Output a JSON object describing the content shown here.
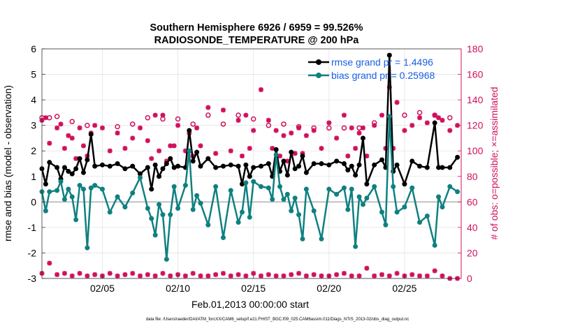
{
  "chart_data": {
    "type": "line",
    "title": "Southern Hemisphere 6926 / 6959 = 99.526%",
    "subtitle": "RADIOSONDE_TEMPERATURE @ 200 hPa",
    "xlabel": "Feb.01,2013 00:00:00 start",
    "ylabel": "rmse and bias (model - observation)",
    "y2label": "# of obs: o=possible; ×=assimilated",
    "footer": "data file: /Users/raeder/DAI/ATM_forcXX/CAM6_setup/f.e21.FHIST_BGC.f09_025.CAM6assim.011/Diags_NTrS_2013-02/obs_diag_output.nc",
    "xlim": [
      1.0,
      28.75
    ],
    "ylim": [
      -3,
      6
    ],
    "y2lim": [
      0,
      180
    ],
    "x_ticks": [
      5,
      10,
      15,
      20,
      25
    ],
    "x_tick_labels": [
      "02/05",
      "02/10",
      "02/15",
      "02/20",
      "02/25"
    ],
    "y_ticks": [
      -3,
      -2,
      -1,
      0,
      1,
      2,
      3,
      4,
      5,
      6
    ],
    "y2_ticks": [
      0,
      20,
      40,
      60,
      80,
      100,
      120,
      140,
      160,
      180
    ],
    "grid": true,
    "legend_position": "top-right",
    "colors": {
      "rmse": "#000000",
      "bias": "#0f8080",
      "obs": "#d0105c",
      "zero": "#b0b0b0"
    },
    "series": [
      {
        "name": "rmse grand pr = 1.4496",
        "x": [
          1.0,
          1.25,
          1.5,
          2.0,
          2.25,
          2.5,
          2.75,
          3.0,
          3.25,
          3.5,
          3.75,
          4.0,
          4.25,
          4.5,
          5.0,
          5.5,
          6.0,
          6.5,
          7.0,
          7.5,
          8.0,
          8.25,
          8.5,
          8.75,
          9.0,
          9.25,
          9.5,
          9.75,
          10.0,
          10.5,
          10.75,
          11.0,
          11.25,
          11.5,
          12.0,
          12.5,
          13.0,
          13.5,
          14.0,
          14.25,
          14.5,
          14.75,
          15.0,
          15.5,
          16.0,
          16.25,
          16.5,
          16.75,
          17.0,
          17.25,
          17.5,
          17.75,
          18.0,
          18.25,
          18.5,
          19.0,
          19.5,
          20.0,
          20.5,
          21.0,
          21.25,
          21.5,
          21.75,
          22.0,
          22.25,
          22.5,
          23.0,
          23.5,
          23.75,
          24.0,
          24.25,
          24.5,
          25.0,
          25.5,
          26.0,
          26.5,
          27.0,
          27.25,
          27.5,
          28.0,
          28.5
        ],
        "values": [
          1.3,
          0.7,
          1.55,
          1.35,
          0.9,
          1.35,
          1.2,
          1.1,
          1.3,
          1.7,
          1.15,
          1.65,
          2.65,
          1.4,
          1.45,
          1.4,
          1.5,
          1.3,
          1.4,
          1.1,
          1.35,
          0.5,
          1.45,
          1.0,
          1.3,
          1.5,
          1.7,
          1.35,
          1.4,
          1.35,
          2.8,
          1.6,
          1.95,
          1.4,
          1.7,
          1.35,
          1.4,
          1.45,
          1.4,
          0.7,
          1.45,
          1.0,
          1.35,
          1.4,
          1.5,
          1.0,
          2.05,
          1.2,
          1.6,
          1.05,
          1.95,
          1.3,
          1.4,
          1.8,
          1.15,
          1.5,
          1.5,
          1.45,
          1.6,
          1.5,
          1.25,
          1.4,
          1.05,
          1.45,
          2.5,
          0.7,
          1.45,
          1.65,
          1.35,
          5.75,
          1.2,
          1.45,
          0.7,
          1.6,
          1.4,
          1.35,
          3.1,
          1.35,
          1.35,
          1.35,
          1.75
        ]
      },
      {
        "name": "bias grand pr = 0.25968",
        "x": [
          1.0,
          1.25,
          1.5,
          2.0,
          2.25,
          2.5,
          2.75,
          3.0,
          3.25,
          3.5,
          3.75,
          4.0,
          4.25,
          4.5,
          5.0,
          5.5,
          6.0,
          6.5,
          7.0,
          7.5,
          8.0,
          8.25,
          8.5,
          8.75,
          9.0,
          9.25,
          9.5,
          9.75,
          10.0,
          10.5,
          10.75,
          11.0,
          11.25,
          11.5,
          12.0,
          12.5,
          13.0,
          13.5,
          14.0,
          14.25,
          14.5,
          14.75,
          15.0,
          15.5,
          16.0,
          16.25,
          16.5,
          16.75,
          17.0,
          17.25,
          17.5,
          17.75,
          18.0,
          18.25,
          18.5,
          19.0,
          19.5,
          20.0,
          20.5,
          21.0,
          21.25,
          21.5,
          21.75,
          22.0,
          22.25,
          22.5,
          23.0,
          23.5,
          23.75,
          24.0,
          24.25,
          24.5,
          25.0,
          25.5,
          26.0,
          26.5,
          27.0,
          27.25,
          27.5,
          28.0,
          28.5
        ],
        "values": [
          0.4,
          -0.35,
          0.4,
          0.45,
          0.8,
          0.1,
          0.5,
          0.2,
          -0.7,
          0.65,
          0.5,
          -1.8,
          0.55,
          0.65,
          0.5,
          -0.4,
          0.2,
          -0.2,
          0.35,
          0.95,
          -0.25,
          -0.65,
          -1.3,
          -0.1,
          -0.5,
          -2.25,
          -0.5,
          0.6,
          -0.25,
          0.65,
          2.0,
          -0.3,
          0.25,
          -0.05,
          -0.9,
          0.6,
          -1.4,
          0.45,
          -0.8,
          -0.4,
          0.75,
          -0.6,
          0.8,
          0.6,
          0.55,
          0.1,
          1.85,
          0.6,
          0.1,
          0.3,
          -0.35,
          0.15,
          -0.5,
          -1.45,
          0.5,
          -0.35,
          -1.45,
          0.5,
          0.3,
          0.55,
          -0.3,
          0.5,
          -1.75,
          0.2,
          -0.1,
          0.15,
          0.6,
          -0.4,
          -0.9,
          3.35,
          0.6,
          -0.4,
          -0.2,
          0.55,
          -0.8,
          -0.55,
          -1.7,
          0.2,
          -0.2,
          0.6,
          0.4
        ]
      }
    ],
    "obs_possible": {
      "x": [
        1.0,
        1.5,
        2.0,
        3.0,
        4.0,
        6.0,
        7.0,
        8.0,
        9.0,
        10.0,
        11.0,
        12.0,
        13.0,
        14.0,
        15.0,
        16.0,
        17.0,
        18.0,
        19.0,
        20.0,
        21.0,
        22.0,
        23.0,
        24.0,
        25.0,
        26.0,
        27.0,
        28.0
      ],
      "values": [
        126,
        126,
        127,
        123,
        120,
        119,
        121,
        126,
        125,
        125,
        121,
        128,
        121,
        128,
        125,
        120,
        121,
        119,
        118,
        118,
        118,
        118,
        122,
        126,
        128,
        130,
        128,
        126
      ]
    },
    "obs_assimilated": {
      "x": [
        1.0,
        1.25,
        1.5,
        2.0,
        2.25,
        2.5,
        2.75,
        3.0,
        3.25,
        3.5,
        3.75,
        4.0,
        4.25,
        4.5,
        5.0,
        5.5,
        6.0,
        6.5,
        7.0,
        7.5,
        8.0,
        8.25,
        8.5,
        8.75,
        9.0,
        9.25,
        9.5,
        9.75,
        10.0,
        10.5,
        10.75,
        11.0,
        11.25,
        11.5,
        12.0,
        12.5,
        13.0,
        13.5,
        14.0,
        14.25,
        14.5,
        14.75,
        15.0,
        15.5,
        16.0,
        16.25,
        16.5,
        16.75,
        17.0,
        17.25,
        17.5,
        17.75,
        18.0,
        18.25,
        18.5,
        19.0,
        19.5,
        20.0,
        20.5,
        21.0,
        21.25,
        21.5,
        21.75,
        22.0,
        22.25,
        22.5,
        23.0,
        23.5,
        23.75,
        24.0,
        24.25,
        24.5,
        25.0,
        25.5,
        26.0,
        26.5,
        27.0,
        27.25,
        27.5,
        28.0,
        28.5
      ],
      "values": [
        124,
        126,
        106,
        118,
        121,
        102,
        112,
        110,
        94,
        118,
        104,
        96,
        114,
        120,
        118,
        100,
        114,
        102,
        110,
        118,
        108,
        94,
        128,
        100,
        128,
        92,
        104,
        104,
        120,
        100,
        114,
        96,
        118,
        104,
        134,
        98,
        132,
        100,
        124,
        96,
        128,
        102,
        116,
        148,
        124,
        102,
        116,
        96,
        112,
        92,
        114,
        98,
        118,
        98,
        112,
        116,
        102,
        122,
        110,
        128,
        96,
        118,
        102,
        114,
        118,
        96,
        120,
        128,
        102,
        150,
        102,
        138,
        116,
        120,
        126,
        122,
        128,
        126,
        124,
        116,
        120
      ]
    },
    "obs_bottom": {
      "x": [
        1.0,
        1.5,
        2.0,
        2.5,
        3.0,
        3.5,
        4.0,
        4.5,
        5.0,
        5.5,
        6.0,
        6.5,
        7.0,
        7.5,
        8.0,
        8.5,
        9.0,
        9.5,
        10.0,
        10.5,
        11.0,
        11.5,
        12.0,
        12.5,
        13.0,
        13.5,
        14.0,
        14.5,
        15.0,
        15.5,
        16.0,
        16.5,
        17.0,
        17.5,
        18.0,
        18.5,
        19.0,
        19.5,
        20.0,
        20.5,
        21.0,
        21.5,
        22.0,
        22.5,
        23.0,
        23.5,
        24.0,
        24.5,
        25.0,
        25.5,
        26.0,
        26.5,
        27.0,
        27.5,
        28.0,
        28.5
      ],
      "values": [
        4,
        12,
        3,
        4,
        2,
        4,
        2,
        3,
        2,
        4,
        2,
        3,
        4,
        2,
        3,
        2,
        4,
        2,
        3,
        2,
        4,
        2,
        2,
        3,
        4,
        2,
        3,
        2,
        4,
        2,
        3,
        2,
        2,
        3,
        4,
        2,
        3,
        2,
        2,
        3,
        4,
        2,
        2,
        8,
        2,
        3,
        2,
        4,
        2,
        3,
        2,
        2,
        6,
        2,
        0,
        0
      ]
    }
  }
}
